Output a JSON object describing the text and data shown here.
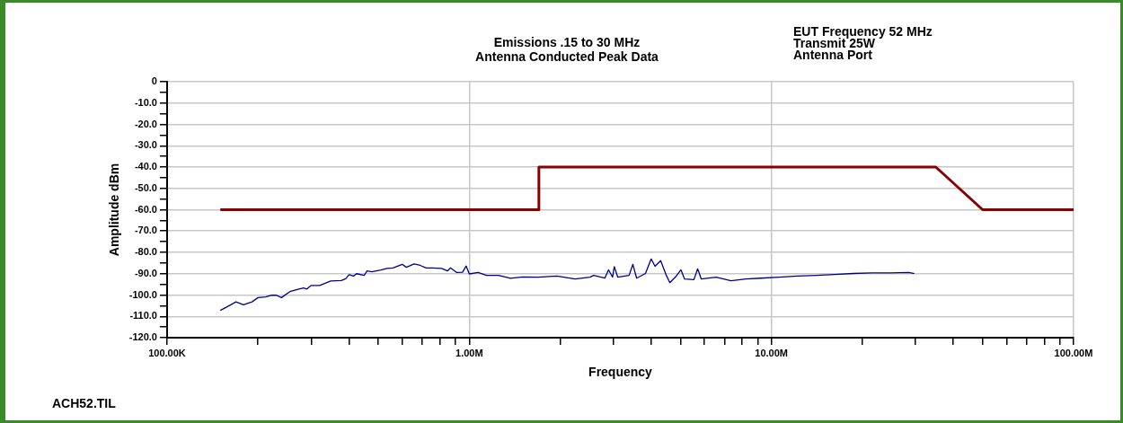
{
  "chart_data": {
    "type": "line",
    "title": "Emissions .15 to 30 MHz",
    "subtitle": "Antenna Conducted Peak Data",
    "xlabel": "Frequency",
    "ylabel": "Amplitude dBm",
    "annotations": [
      "EUT Frequency 52 MHz",
      "Transmit 25W",
      "Antenna Port",
      "ACH52.TIL"
    ],
    "log": "x",
    "grid": true,
    "legend": false,
    "xlim": [
      100000,
      100000000
    ],
    "xticks": [
      {
        "value": 100000,
        "label": "100.00K"
      },
      {
        "value": 200000,
        "label": null
      },
      {
        "value": 300000,
        "label": null
      },
      {
        "value": 400000,
        "label": null
      },
      {
        "value": 500000,
        "label": null
      },
      {
        "value": 600000,
        "label": null
      },
      {
        "value": 700000,
        "label": null
      },
      {
        "value": 800000,
        "label": null
      },
      {
        "value": 900000,
        "label": null
      },
      {
        "value": 1000000,
        "label": "1.00M"
      },
      {
        "value": 2000000,
        "label": null
      },
      {
        "value": 3000000,
        "label": null
      },
      {
        "value": 4000000,
        "label": null
      },
      {
        "value": 5000000,
        "label": null
      },
      {
        "value": 6000000,
        "label": null
      },
      {
        "value": 7000000,
        "label": null
      },
      {
        "value": 8000000,
        "label": null
      },
      {
        "value": 9000000,
        "label": null
      },
      {
        "value": 10000000,
        "label": "10.00M"
      },
      {
        "value": 20000000,
        "label": null
      },
      {
        "value": 30000000,
        "label": null
      },
      {
        "value": 40000000,
        "label": null
      },
      {
        "value": 50000000,
        "label": null
      },
      {
        "value": 60000000,
        "label": null
      },
      {
        "value": 70000000,
        "label": null
      },
      {
        "value": 80000000,
        "label": null
      },
      {
        "value": 90000000,
        "label": null
      },
      {
        "value": 100000000,
        "label": "100.00M"
      }
    ],
    "ylim": [
      -120,
      0
    ],
    "yticks": [
      {
        "value": 0,
        "label": "0"
      },
      {
        "value": -5,
        "label": null
      },
      {
        "value": -10,
        "label": "-10.0"
      },
      {
        "value": -15,
        "label": null
      },
      {
        "value": -20,
        "label": "-20.0"
      },
      {
        "value": -25,
        "label": null
      },
      {
        "value": -30,
        "label": "-30.0"
      },
      {
        "value": -35,
        "label": null
      },
      {
        "value": -40,
        "label": "-40.0"
      },
      {
        "value": -45,
        "label": null
      },
      {
        "value": -50,
        "label": "-50.0"
      },
      {
        "value": -55,
        "label": null
      },
      {
        "value": -60,
        "label": "-60.0"
      },
      {
        "value": -65,
        "label": null
      },
      {
        "value": -70,
        "label": "-70.0"
      },
      {
        "value": -75,
        "label": null
      },
      {
        "value": -80,
        "label": "-80.0"
      },
      {
        "value": -85,
        "label": null
      },
      {
        "value": -90,
        "label": "-90.0"
      },
      {
        "value": -95,
        "label": null
      },
      {
        "value": -100,
        "label": "-100.0"
      },
      {
        "value": -105,
        "label": null
      },
      {
        "value": -110,
        "label": "-110.0"
      },
      {
        "value": -115,
        "label": null
      },
      {
        "value": -120,
        "label": "-120.0"
      }
    ],
    "series": [
      {
        "color": "#880000",
        "x": [
          150000,
          1700000,
          1700000,
          35000000,
          50000000,
          100000000
        ],
        "values": [
          -60,
          -60,
          -40,
          -40,
          -60,
          -60
        ]
      },
      {
        "color": "#000088",
        "x": [
          150000,
          159000,
          169000,
          179000,
          191000,
          200000,
          212000,
          222000,
          230000,
          239000,
          255000,
          273000,
          283000,
          290000,
          300000,
          320000,
          348000,
          377000,
          390000,
          400000,
          414000,
          424000,
          449000,
          459000,
          476000,
          510000,
          534000,
          559000,
          600000,
          619000,
          657000,
          688000,
          720000,
          755000,
          810000,
          847000,
          867000,
          907000,
          950000,
          977000,
          1000000,
          1070000,
          1140000,
          1250000,
          1370000,
          1500000,
          1690000,
          1950000,
          2240000,
          2510000,
          2580000,
          2810000,
          2890000,
          2980000,
          3020000,
          3100000,
          3380000,
          3480000,
          3580000,
          3830000,
          4000000,
          4120000,
          4300000,
          4490000,
          4610000,
          4810000,
          5020000,
          5160000,
          5540000,
          5700000,
          5860000,
          6560000,
          7350000,
          8230000,
          9200000,
          10600000,
          12200000,
          14100000,
          16200000,
          18700000,
          21500000,
          24800000,
          28500000,
          29700000
        ],
        "values": [
          -107.2,
          -105.3,
          -103.2,
          -104.6,
          -103.2,
          -101.2,
          -100.9,
          -100.1,
          -100.1,
          -101.2,
          -98.4,
          -97.2,
          -96.7,
          -97.2,
          -95.5,
          -95.5,
          -93.4,
          -93.2,
          -92.4,
          -90.5,
          -91.1,
          -90,
          -90.8,
          -88.7,
          -89.1,
          -88.3,
          -87.5,
          -87.3,
          -85.6,
          -87,
          -85.4,
          -86.1,
          -87.3,
          -87.3,
          -87.5,
          -88.7,
          -87.3,
          -89.4,
          -89.3,
          -86.4,
          -90.1,
          -89.4,
          -90.8,
          -90.8,
          -92.2,
          -91.5,
          -91.6,
          -91.1,
          -92.5,
          -91.6,
          -90.8,
          -92.1,
          -88.2,
          -91.6,
          -86.7,
          -91.6,
          -90.8,
          -85.6,
          -92.1,
          -89.9,
          -83.1,
          -86.5,
          -83.9,
          -90.8,
          -94.2,
          -91.6,
          -88.2,
          -92.5,
          -92.8,
          -87.7,
          -92.5,
          -91.6,
          -93.3,
          -92.5,
          -92.1,
          -91.6,
          -91.1,
          -90.8,
          -90.4,
          -89.9,
          -89.6,
          -89.6,
          -89.4,
          -89.9
        ]
      }
    ]
  }
}
